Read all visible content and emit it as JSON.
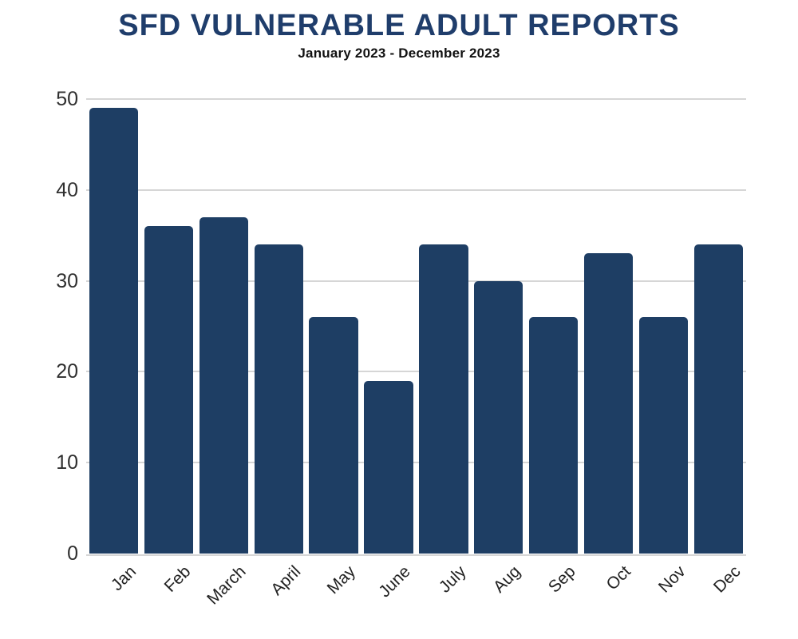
{
  "chart_data": {
    "type": "bar",
    "title": "SFD VULNERABLE ADULT REPORTS",
    "subtitle": "January 2023 - December 2023",
    "categories": [
      "Jan",
      "Feb",
      "March",
      "April",
      "May",
      "June",
      "July",
      "Aug",
      "Sep",
      "Oct",
      "Nov",
      "Dec"
    ],
    "values": [
      49,
      36,
      37,
      34,
      26,
      19,
      34,
      30,
      26,
      33,
      26,
      34
    ],
    "xlabel": "",
    "ylabel": "",
    "yticks": [
      0,
      10,
      20,
      30,
      40,
      50
    ],
    "ylim": [
      0,
      50
    ],
    "grid": "horizontal",
    "legend": "none",
    "bar_color": "#1e3e64",
    "gridline_color": "#d6d6d6",
    "title_color": "#1f3d6b",
    "subtitle_color": "#111111",
    "axis_label_color": "#2f2f2f"
  }
}
